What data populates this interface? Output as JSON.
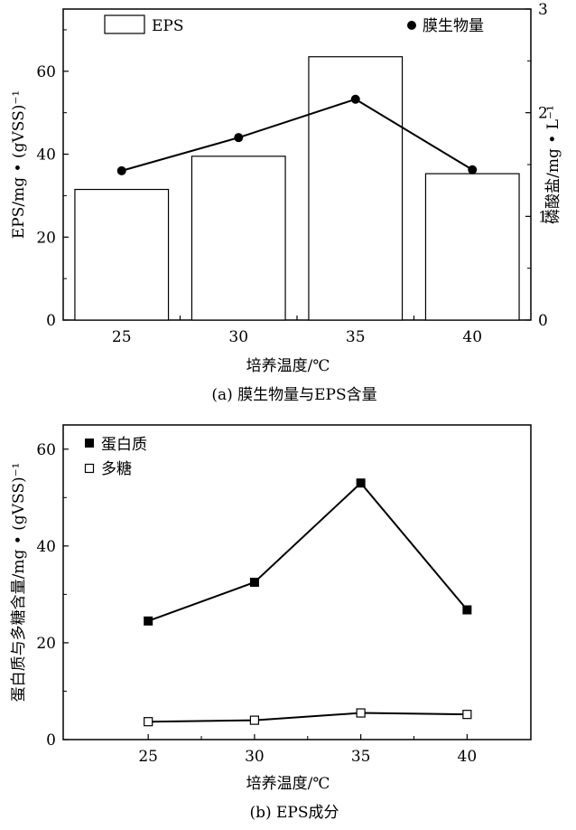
{
  "chart_data": [
    {
      "type": "bar",
      "caption": "(a) 膜生物量与EPS含量",
      "xlabel": "培养温度/℃",
      "ylabel": "EPS/mg • (gVSS)⁻¹",
      "y2label": "磷酸盐/mg • L⁻¹",
      "categories": [
        "25",
        "30",
        "35",
        "40"
      ],
      "ylim": [
        0,
        75
      ],
      "y2lim": [
        0,
        3
      ],
      "yticks": [
        "0",
        "20",
        "40",
        "60"
      ],
      "y2ticks": [
        "0",
        "1",
        "2",
        "3"
      ],
      "legend_position": "top",
      "series": [
        {
          "name": "EPS",
          "kind": "bar",
          "axis": "left",
          "values": [
            31.5,
            39.5,
            63.5,
            35.3
          ]
        },
        {
          "name": "膜生物量",
          "kind": "line",
          "axis": "right",
          "marker": "circle",
          "values": [
            1.44,
            1.76,
            2.13,
            1.45
          ]
        }
      ]
    },
    {
      "type": "line",
      "caption": "(b) EPS成分",
      "xlabel": "培养温度/℃",
      "ylabel": "蛋白质与多糖含量/mg • (gVSS)⁻¹",
      "x": [
        25,
        30,
        35,
        40
      ],
      "xticks": [
        "25",
        "30",
        "35",
        "40"
      ],
      "ylim": [
        0,
        65
      ],
      "yticks": [
        "0",
        "20",
        "40",
        "60"
      ],
      "legend_position": "top-left",
      "series": [
        {
          "name": "蛋白质",
          "marker": "filled-square",
          "values": [
            24.5,
            32.5,
            53.0,
            26.8
          ]
        },
        {
          "name": "多糖",
          "marker": "open-square",
          "values": [
            3.7,
            4.0,
            5.5,
            5.2
          ]
        }
      ]
    }
  ]
}
